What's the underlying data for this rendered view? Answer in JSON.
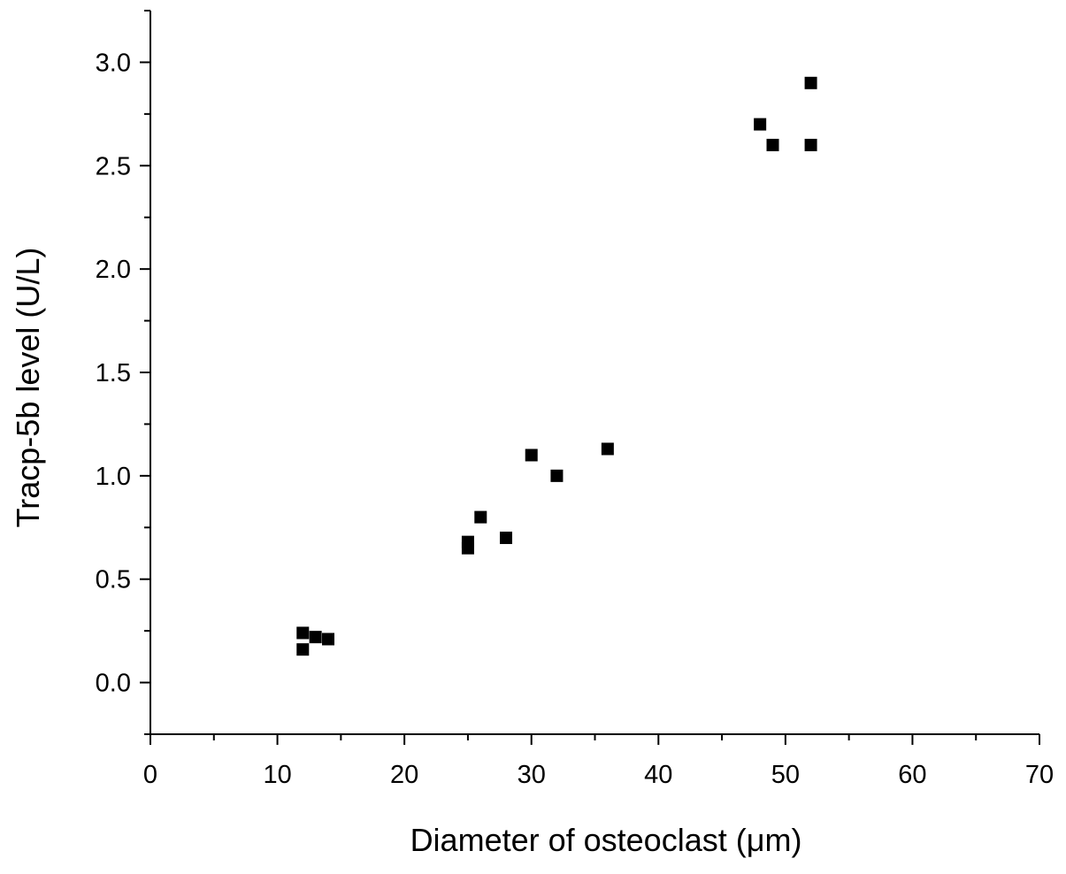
{
  "chart_data": {
    "type": "scatter",
    "xlabel": "Diameter of osteoclast (μm)",
    "ylabel": "Tracp-5b level (U/L)",
    "xlim": [
      0,
      70
    ],
    "ylim": [
      -0.25,
      3.25
    ],
    "x_ticks": [
      0,
      10,
      20,
      30,
      40,
      50,
      60,
      70
    ],
    "x_tick_labels": [
      "0",
      "10",
      "20",
      "30",
      "40",
      "50",
      "60",
      "70"
    ],
    "y_ticks": [
      0.0,
      0.5,
      1.0,
      1.5,
      2.0,
      2.5,
      3.0
    ],
    "y_tick_labels": [
      "0.0",
      "0.5",
      "1.0",
      "1.5",
      "2.0",
      "2.5",
      "3.0"
    ],
    "grid": false,
    "legend": "none",
    "marker": "square",
    "marker_color": "#000000",
    "series": [
      {
        "points": [
          {
            "x": 12,
            "y": 0.24
          },
          {
            "x": 12,
            "y": 0.16
          },
          {
            "x": 13,
            "y": 0.22
          },
          {
            "x": 14,
            "y": 0.21
          },
          {
            "x": 25,
            "y": 0.68
          },
          {
            "x": 25,
            "y": 0.65
          },
          {
            "x": 26,
            "y": 0.8
          },
          {
            "x": 28,
            "y": 0.7
          },
          {
            "x": 30,
            "y": 1.1
          },
          {
            "x": 32,
            "y": 1.0
          },
          {
            "x": 36,
            "y": 1.13
          },
          {
            "x": 48,
            "y": 2.7
          },
          {
            "x": 49,
            "y": 2.6
          },
          {
            "x": 52,
            "y": 2.9
          },
          {
            "x": 52,
            "y": 2.6
          }
        ]
      }
    ]
  }
}
